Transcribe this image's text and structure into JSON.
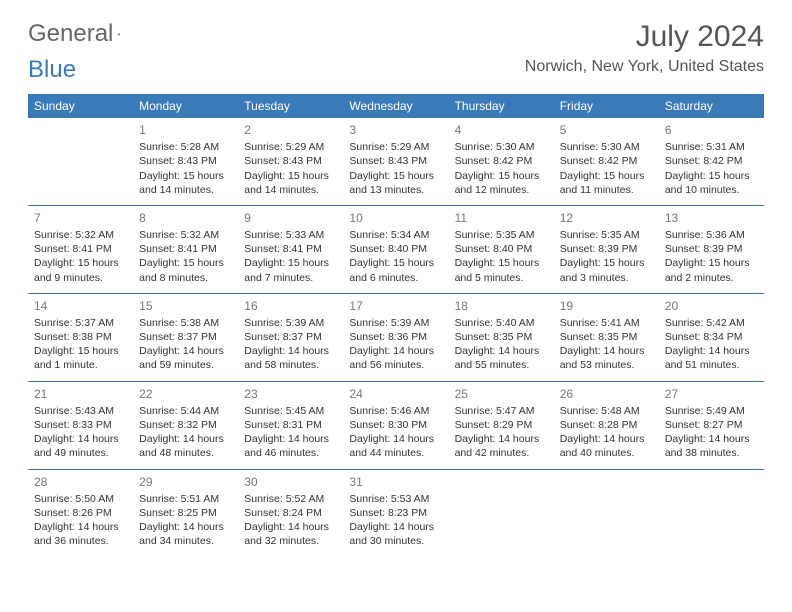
{
  "logo": {
    "word1": "General",
    "word2": "Blue"
  },
  "title": "July 2024",
  "location": "Norwich, New York, United States",
  "colors": {
    "header_bg": "#3a7ab8",
    "header_text": "#ffffff",
    "rule": "#3a7ab8",
    "daynum": "#777777",
    "body_text": "#333333",
    "background": "#ffffff"
  },
  "layout": {
    "columns": 7,
    "rows": 5,
    "font_family": "Arial",
    "body_font_pt": 8,
    "header_font_pt": 9
  },
  "day_headers": [
    "Sunday",
    "Monday",
    "Tuesday",
    "Wednesday",
    "Thursday",
    "Friday",
    "Saturday"
  ],
  "weeks": [
    [
      {
        "day": "",
        "sunrise": "",
        "sunset": "",
        "daylight": ""
      },
      {
        "day": "1",
        "sunrise": "Sunrise: 5:28 AM",
        "sunset": "Sunset: 8:43 PM",
        "daylight": "Daylight: 15 hours and 14 minutes."
      },
      {
        "day": "2",
        "sunrise": "Sunrise: 5:29 AM",
        "sunset": "Sunset: 8:43 PM",
        "daylight": "Daylight: 15 hours and 14 minutes."
      },
      {
        "day": "3",
        "sunrise": "Sunrise: 5:29 AM",
        "sunset": "Sunset: 8:43 PM",
        "daylight": "Daylight: 15 hours and 13 minutes."
      },
      {
        "day": "4",
        "sunrise": "Sunrise: 5:30 AM",
        "sunset": "Sunset: 8:42 PM",
        "daylight": "Daylight: 15 hours and 12 minutes."
      },
      {
        "day": "5",
        "sunrise": "Sunrise: 5:30 AM",
        "sunset": "Sunset: 8:42 PM",
        "daylight": "Daylight: 15 hours and 11 minutes."
      },
      {
        "day": "6",
        "sunrise": "Sunrise: 5:31 AM",
        "sunset": "Sunset: 8:42 PM",
        "daylight": "Daylight: 15 hours and 10 minutes."
      }
    ],
    [
      {
        "day": "7",
        "sunrise": "Sunrise: 5:32 AM",
        "sunset": "Sunset: 8:41 PM",
        "daylight": "Daylight: 15 hours and 9 minutes."
      },
      {
        "day": "8",
        "sunrise": "Sunrise: 5:32 AM",
        "sunset": "Sunset: 8:41 PM",
        "daylight": "Daylight: 15 hours and 8 minutes."
      },
      {
        "day": "9",
        "sunrise": "Sunrise: 5:33 AM",
        "sunset": "Sunset: 8:41 PM",
        "daylight": "Daylight: 15 hours and 7 minutes."
      },
      {
        "day": "10",
        "sunrise": "Sunrise: 5:34 AM",
        "sunset": "Sunset: 8:40 PM",
        "daylight": "Daylight: 15 hours and 6 minutes."
      },
      {
        "day": "11",
        "sunrise": "Sunrise: 5:35 AM",
        "sunset": "Sunset: 8:40 PM",
        "daylight": "Daylight: 15 hours and 5 minutes."
      },
      {
        "day": "12",
        "sunrise": "Sunrise: 5:35 AM",
        "sunset": "Sunset: 8:39 PM",
        "daylight": "Daylight: 15 hours and 3 minutes."
      },
      {
        "day": "13",
        "sunrise": "Sunrise: 5:36 AM",
        "sunset": "Sunset: 8:39 PM",
        "daylight": "Daylight: 15 hours and 2 minutes."
      }
    ],
    [
      {
        "day": "14",
        "sunrise": "Sunrise: 5:37 AM",
        "sunset": "Sunset: 8:38 PM",
        "daylight": "Daylight: 15 hours and 1 minute."
      },
      {
        "day": "15",
        "sunrise": "Sunrise: 5:38 AM",
        "sunset": "Sunset: 8:37 PM",
        "daylight": "Daylight: 14 hours and 59 minutes."
      },
      {
        "day": "16",
        "sunrise": "Sunrise: 5:39 AM",
        "sunset": "Sunset: 8:37 PM",
        "daylight": "Daylight: 14 hours and 58 minutes."
      },
      {
        "day": "17",
        "sunrise": "Sunrise: 5:39 AM",
        "sunset": "Sunset: 8:36 PM",
        "daylight": "Daylight: 14 hours and 56 minutes."
      },
      {
        "day": "18",
        "sunrise": "Sunrise: 5:40 AM",
        "sunset": "Sunset: 8:35 PM",
        "daylight": "Daylight: 14 hours and 55 minutes."
      },
      {
        "day": "19",
        "sunrise": "Sunrise: 5:41 AM",
        "sunset": "Sunset: 8:35 PM",
        "daylight": "Daylight: 14 hours and 53 minutes."
      },
      {
        "day": "20",
        "sunrise": "Sunrise: 5:42 AM",
        "sunset": "Sunset: 8:34 PM",
        "daylight": "Daylight: 14 hours and 51 minutes."
      }
    ],
    [
      {
        "day": "21",
        "sunrise": "Sunrise: 5:43 AM",
        "sunset": "Sunset: 8:33 PM",
        "daylight": "Daylight: 14 hours and 49 minutes."
      },
      {
        "day": "22",
        "sunrise": "Sunrise: 5:44 AM",
        "sunset": "Sunset: 8:32 PM",
        "daylight": "Daylight: 14 hours and 48 minutes."
      },
      {
        "day": "23",
        "sunrise": "Sunrise: 5:45 AM",
        "sunset": "Sunset: 8:31 PM",
        "daylight": "Daylight: 14 hours and 46 minutes."
      },
      {
        "day": "24",
        "sunrise": "Sunrise: 5:46 AM",
        "sunset": "Sunset: 8:30 PM",
        "daylight": "Daylight: 14 hours and 44 minutes."
      },
      {
        "day": "25",
        "sunrise": "Sunrise: 5:47 AM",
        "sunset": "Sunset: 8:29 PM",
        "daylight": "Daylight: 14 hours and 42 minutes."
      },
      {
        "day": "26",
        "sunrise": "Sunrise: 5:48 AM",
        "sunset": "Sunset: 8:28 PM",
        "daylight": "Daylight: 14 hours and 40 minutes."
      },
      {
        "day": "27",
        "sunrise": "Sunrise: 5:49 AM",
        "sunset": "Sunset: 8:27 PM",
        "daylight": "Daylight: 14 hours and 38 minutes."
      }
    ],
    [
      {
        "day": "28",
        "sunrise": "Sunrise: 5:50 AM",
        "sunset": "Sunset: 8:26 PM",
        "daylight": "Daylight: 14 hours and 36 minutes."
      },
      {
        "day": "29",
        "sunrise": "Sunrise: 5:51 AM",
        "sunset": "Sunset: 8:25 PM",
        "daylight": "Daylight: 14 hours and 34 minutes."
      },
      {
        "day": "30",
        "sunrise": "Sunrise: 5:52 AM",
        "sunset": "Sunset: 8:24 PM",
        "daylight": "Daylight: 14 hours and 32 minutes."
      },
      {
        "day": "31",
        "sunrise": "Sunrise: 5:53 AM",
        "sunset": "Sunset: 8:23 PM",
        "daylight": "Daylight: 14 hours and 30 minutes."
      },
      {
        "day": "",
        "sunrise": "",
        "sunset": "",
        "daylight": ""
      },
      {
        "day": "",
        "sunrise": "",
        "sunset": "",
        "daylight": ""
      },
      {
        "day": "",
        "sunrise": "",
        "sunset": "",
        "daylight": ""
      }
    ]
  ]
}
